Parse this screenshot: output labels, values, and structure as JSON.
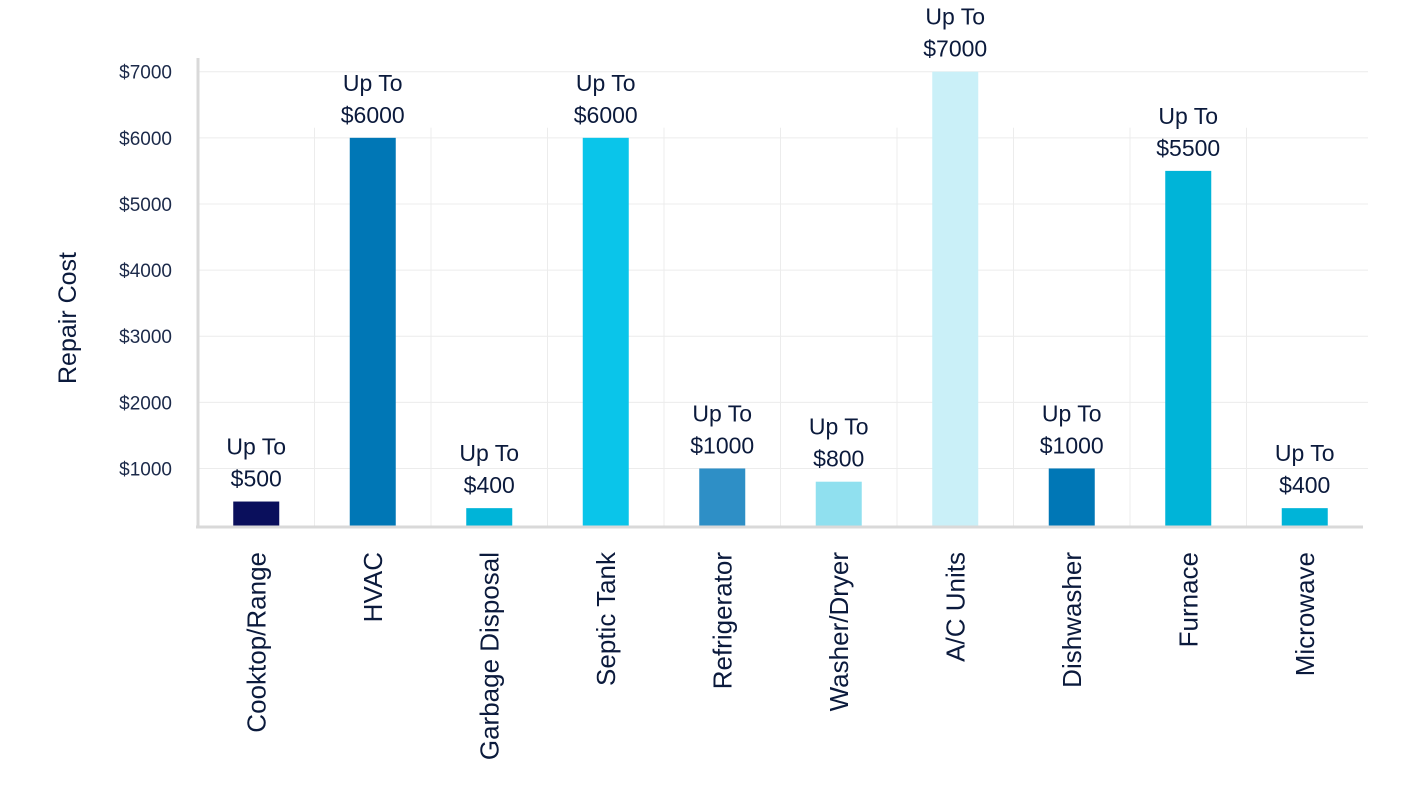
{
  "chart_data": {
    "type": "bar",
    "title": "",
    "xlabel": "",
    "ylabel": "Repair Cost",
    "ylim": [
      0,
      7000
    ],
    "yticks": [
      1000,
      2000,
      3000,
      4000,
      5000,
      6000,
      7000
    ],
    "ytick_labels": [
      "$1000",
      "$2000",
      "$3000",
      "$4000",
      "$5000",
      "$6000",
      "$7000"
    ],
    "grid": true,
    "categories": [
      "Cooktop/Range",
      "HVAC",
      "Garbage Disposal",
      "Septic Tank",
      "Refrigerator",
      "Washer/Dryer",
      "A/C Units",
      "Dishwasher",
      "Furnace",
      "Microwave"
    ],
    "values": [
      500,
      6000,
      400,
      6000,
      1000,
      800,
      7000,
      1000,
      5500,
      400
    ],
    "bar_labels": [
      [
        "Up To",
        "$500"
      ],
      [
        "Up To",
        "$6000"
      ],
      [
        "Up To",
        "$400"
      ],
      [
        "Up To",
        "$6000"
      ],
      [
        "Up To",
        "$1000"
      ],
      [
        "Up To",
        "$800"
      ],
      [
        "Up To",
        "$7000"
      ],
      [
        "Up To",
        "$1000"
      ],
      [
        "Up To",
        "$5500"
      ],
      [
        "Up To",
        "$400"
      ]
    ],
    "colors": [
      "#0a0f5c",
      "#0077b6",
      "#00b4d8",
      "#0ac5ea",
      "#2e8fc6",
      "#90e0ef",
      "#caf0f8",
      "#0077b6",
      "#00b4d8",
      "#00b4d8"
    ]
  }
}
